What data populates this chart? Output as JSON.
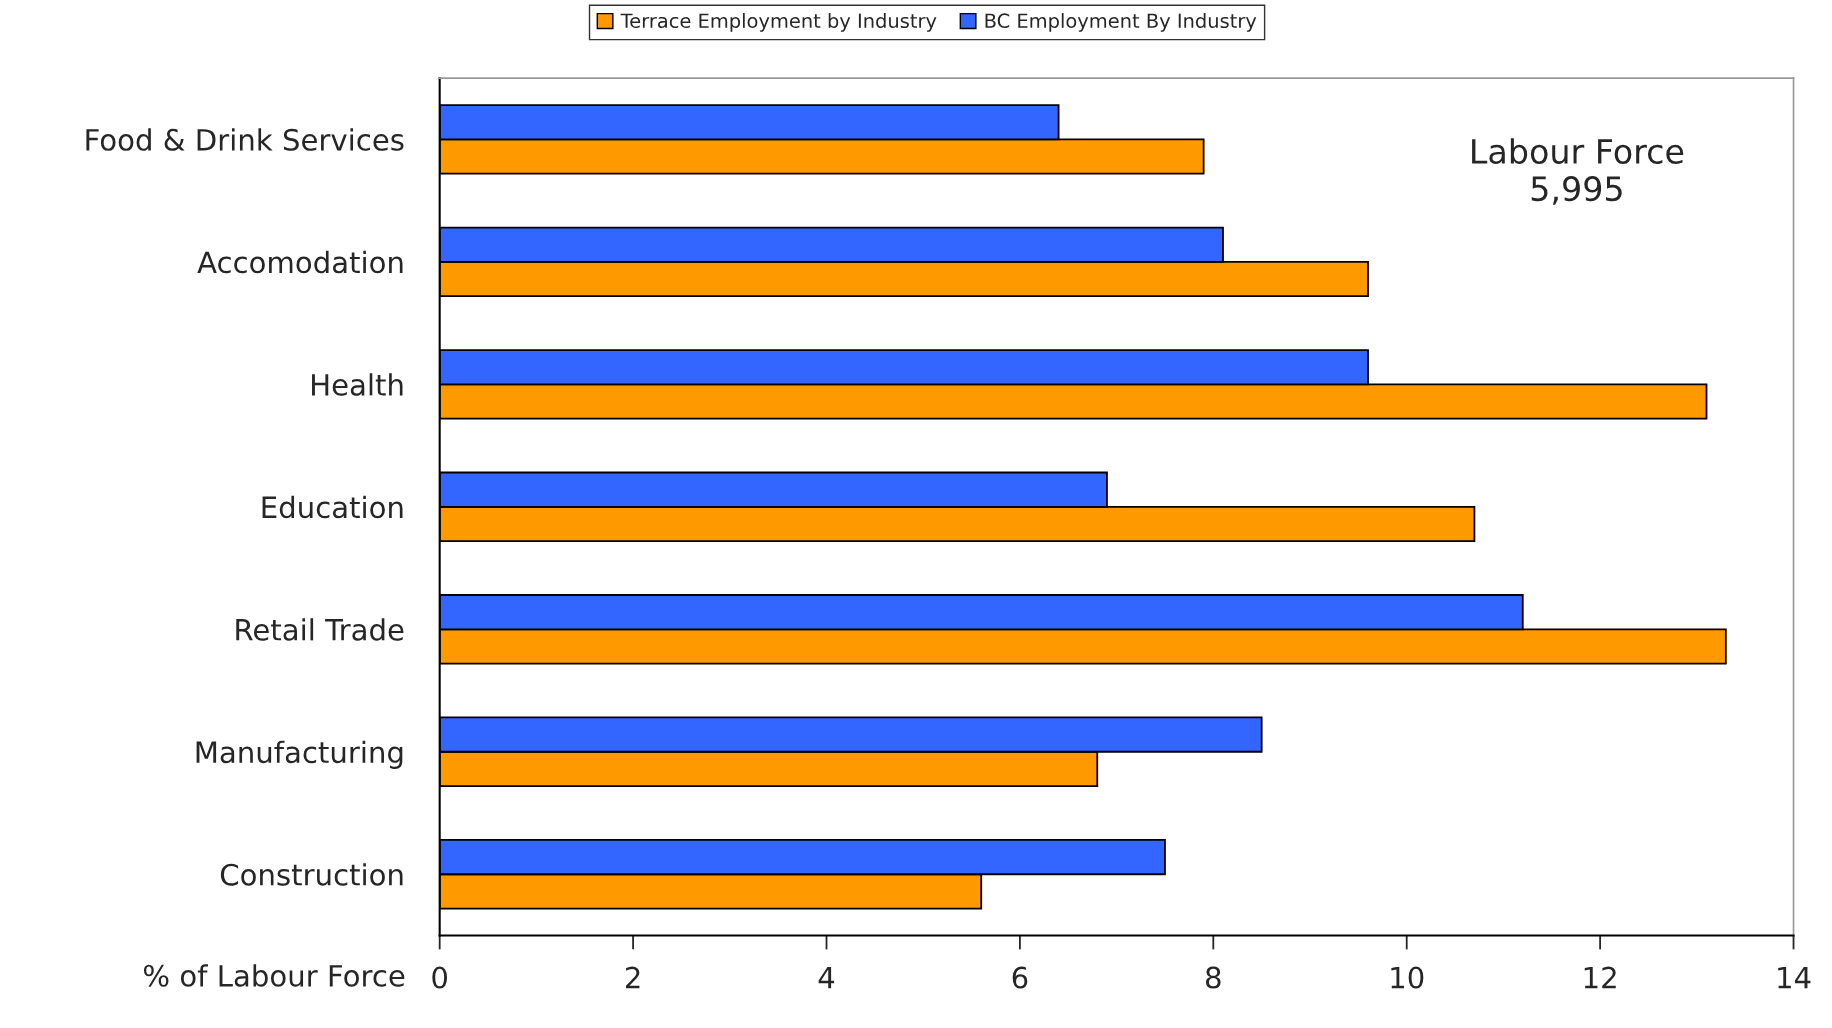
{
  "chart_data": {
    "type": "bar",
    "orientation": "horizontal",
    "xlabel": "% of Labour Force",
    "categories": [
      "Food & Drink Services",
      "Accomodation",
      "Health",
      "Education",
      "Retail Trade",
      "Manufacturing",
      "Construction"
    ],
    "series": [
      {
        "name": "Terrace Employment by Industry",
        "color": "#ff9900",
        "values": [
          7.9,
          9.6,
          13.1,
          10.7,
          13.3,
          6.8,
          5.6
        ]
      },
      {
        "name": "BC Employment By Industry",
        "color": "#3366ff",
        "values": [
          6.4,
          8.1,
          9.6,
          6.9,
          11.2,
          8.5,
          7.5
        ]
      }
    ],
    "xlim": [
      0,
      14
    ],
    "xticks": [
      0,
      2,
      4,
      6,
      8,
      10,
      12,
      14
    ],
    "annotations": [
      "Labour Force\n5,995"
    ],
    "legend": "top",
    "grid": false
  }
}
